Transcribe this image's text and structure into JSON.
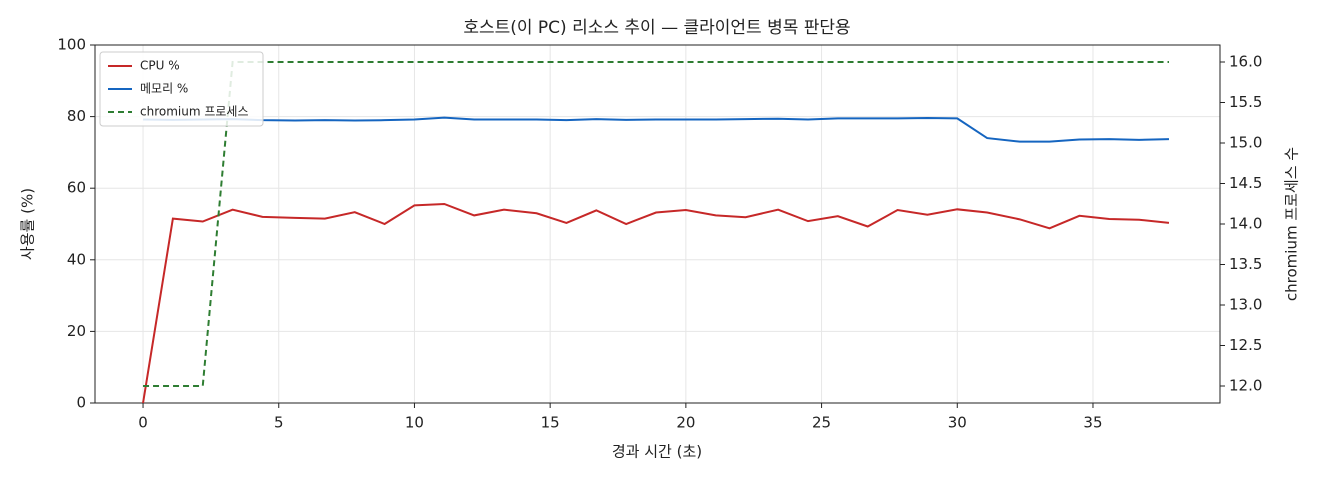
{
  "chart_data": {
    "type": "line",
    "title": "호스트(이 PC) 리소스 추이 — 클라이언트 병목 판단용",
    "xlabel": "경과 시간 (초)",
    "ylabel": "사용률 (%)",
    "y2label": "chromium 프로세스 수",
    "x": [
      0,
      1.1,
      2.2,
      3.3,
      4.4,
      5.6,
      6.7,
      7.8,
      8.9,
      10.0,
      11.1,
      12.2,
      13.3,
      14.5,
      15.6,
      16.7,
      17.8,
      18.9,
      20.0,
      21.1,
      22.2,
      23.4,
      24.5,
      25.6,
      26.7,
      27.8,
      28.9,
      30.0,
      31.1,
      32.3,
      33.4,
      34.5,
      35.6,
      36.7,
      37.8
    ],
    "series": [
      {
        "name": "CPU %",
        "color": "#c62828",
        "values": [
          0,
          51.5,
          50.7,
          54,
          52,
          51.7,
          51.5,
          53.3,
          50,
          55.2,
          55.6,
          52.4,
          54,
          53,
          50.3,
          53.8,
          50,
          53.2,
          53.9,
          52.4,
          51.9,
          54,
          50.8,
          52.2,
          49.3,
          53.9,
          52.6,
          54.1,
          53.2,
          51.3,
          48.8,
          52.3,
          51.4,
          51.2,
          50.3
        ]
      },
      {
        "name": "메모리 %",
        "color": "#1565c0",
        "values": [
          79.2,
          79.1,
          79.2,
          79.3,
          79,
          78.9,
          79,
          78.9,
          79,
          79.2,
          79.7,
          79.2,
          79.2,
          79.2,
          79,
          79.3,
          79.1,
          79.2,
          79.2,
          79.2,
          79.3,
          79.4,
          79.2,
          79.5,
          79.5,
          79.5,
          79.6,
          79.5,
          74,
          73,
          73,
          73.6,
          73.7,
          73.5,
          73.7
        ]
      },
      {
        "name": "chromium 프로세스",
        "color": "#2e7d32",
        "dashed": true,
        "axis": "y2",
        "values": [
          12,
          12,
          12,
          16,
          16,
          16,
          16,
          16,
          16,
          16,
          16,
          16,
          16,
          16,
          16,
          16,
          16,
          16,
          16,
          16,
          16,
          16,
          16,
          16,
          16,
          16,
          16,
          16,
          16,
          16,
          16,
          16,
          16,
          16,
          16
        ]
      }
    ],
    "xlim": [
      -1.77,
      39.68
    ],
    "xticks": [
      0,
      5,
      10,
      15,
      20,
      25,
      30,
      35
    ],
    "ylim": [
      0,
      100
    ],
    "yticks": [
      0,
      20,
      40,
      60,
      80,
      100
    ],
    "y2lim": [
      11.79,
      16.21
    ],
    "y2ticks": [
      {
        "value": 12,
        "label": "12.0"
      },
      12.5,
      {
        "value": 13,
        "label": "13.0"
      },
      13.5,
      {
        "value": 14,
        "label": "14.0"
      },
      14.5,
      {
        "value": 15,
        "label": "15.0"
      },
      15.5,
      {
        "value": 16,
        "label": "16.0"
      }
    ],
    "grid": true,
    "legend": "upper-left"
  }
}
